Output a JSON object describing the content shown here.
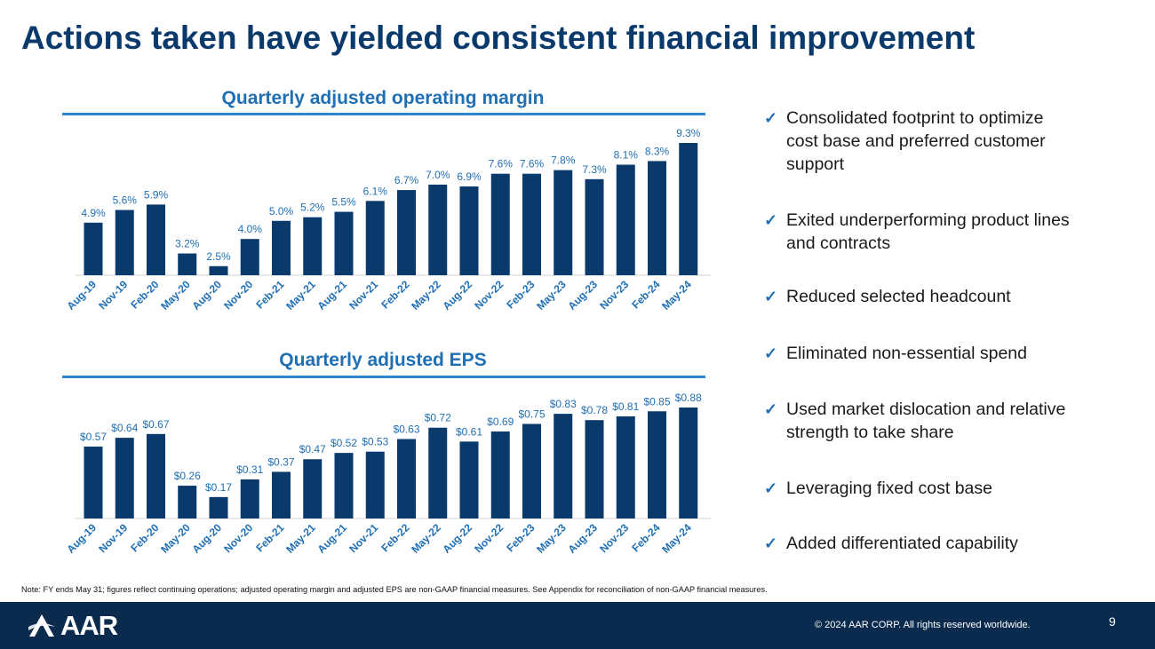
{
  "slide": {
    "title": "Actions taken have yielded consistent financial improvement",
    "note": "Note: FY ends May 31; figures reflect continuing operations; adjusted operating margin and adjusted EPS are non-GAAP financial measures.  See Appendix for reconciliation of non-GAAP financial measures.",
    "copyright": "© 2024 AAR CORP. All rights reserved worldwide.",
    "page_number": "9",
    "logo_text": "AAR",
    "colors": {
      "bar": "#0a3a6b",
      "accent": "#1f6fb5",
      "title": "#0a3a6b",
      "footer": "#0a2a4e"
    }
  },
  "bullets": [
    "Consolidated footprint to optimize cost base and preferred customer support",
    "Exited underperforming product lines and contracts",
    "Reduced selected headcount",
    "Eliminated non-essential spend",
    "Used market dislocation and relative strength to take share",
    "Leveraging fixed cost base",
    "Added differentiated capability"
  ],
  "chart_data": [
    {
      "type": "bar",
      "title": "Quarterly adjusted operating margin",
      "categories": [
        "Aug-19",
        "Nov-19",
        "Feb-20",
        "May-20",
        "Aug-20",
        "Nov-20",
        "Feb-21",
        "May-21",
        "Aug-21",
        "Nov-21",
        "Feb-22",
        "May-22",
        "Aug-22",
        "Nov-22",
        "Feb-23",
        "May-23",
        "Aug-23",
        "Nov-23",
        "Feb-24",
        "May-24"
      ],
      "values": [
        4.9,
        5.6,
        5.9,
        3.2,
        2.5,
        4.0,
        5.0,
        5.2,
        5.5,
        6.1,
        6.7,
        7.0,
        6.9,
        7.6,
        7.6,
        7.8,
        7.3,
        8.1,
        8.3,
        9.3
      ],
      "labels": [
        "4.9%",
        "5.6%",
        "5.9%",
        "3.2%",
        "2.5%",
        "4.0%",
        "5.0%",
        "5.2%",
        "5.5%",
        "6.1%",
        "6.7%",
        "7.0%",
        "6.9%",
        "7.6%",
        "7.6%",
        "7.8%",
        "7.3%",
        "8.1%",
        "8.3%",
        "9.3%"
      ],
      "unit": "%",
      "ylim": [
        2.0,
        9.3
      ]
    },
    {
      "type": "bar",
      "title": "Quarterly adjusted EPS",
      "categories": [
        "Aug-19",
        "Nov-19",
        "Feb-20",
        "May-20",
        "Aug-20",
        "Nov-20",
        "Feb-21",
        "May-21",
        "Aug-21",
        "Nov-21",
        "Feb-22",
        "May-22",
        "Aug-22",
        "Nov-22",
        "Feb-23",
        "May-23",
        "Aug-23",
        "Nov-23",
        "Feb-24",
        "May-24"
      ],
      "values": [
        0.57,
        0.64,
        0.67,
        0.26,
        0.17,
        0.31,
        0.37,
        0.47,
        0.52,
        0.53,
        0.63,
        0.72,
        0.61,
        0.69,
        0.75,
        0.83,
        0.78,
        0.81,
        0.85,
        0.88
      ],
      "labels": [
        "$0.57",
        "$0.64",
        "$0.67",
        "$0.26",
        "$0.17",
        "$0.31",
        "$0.37",
        "$0.47",
        "$0.52",
        "$0.53",
        "$0.63",
        "$0.72",
        "$0.61",
        "$0.69",
        "$0.75",
        "$0.83",
        "$0.78",
        "$0.81",
        "$0.85",
        "$0.88"
      ],
      "unit": "$",
      "ylim": [
        0,
        0.88
      ]
    }
  ]
}
